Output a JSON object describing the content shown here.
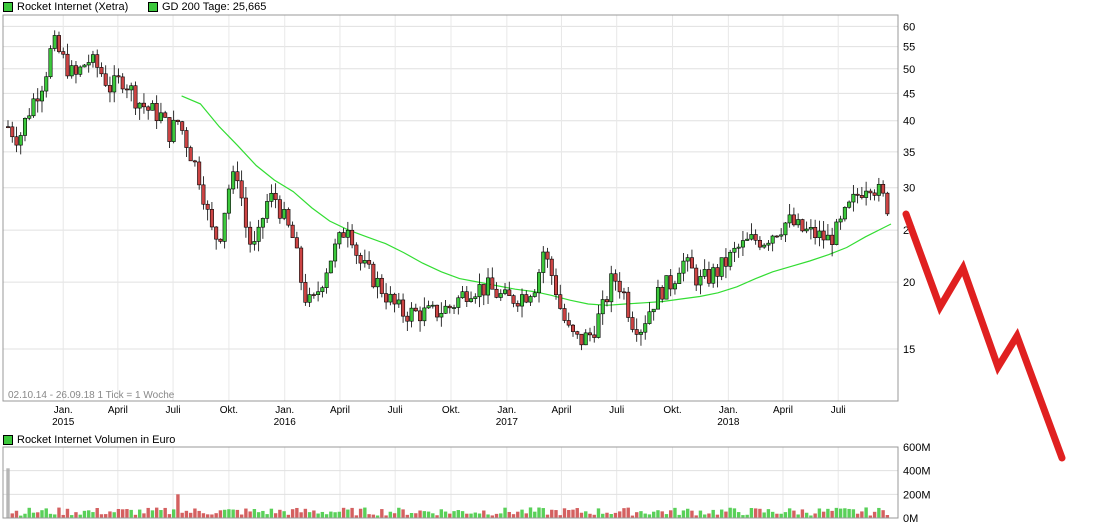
{
  "legend": {
    "price_label": "Rocket Internet (Xetra)",
    "sma_label": "GD 200 Tage: 25,665",
    "volume_label": "Rocket Internet Volumen in Euro",
    "price_color": "#3cc83c",
    "sma_color": "#3cc83c",
    "volume_color": "#3cc83c"
  },
  "footer_note": "02.10.14 - 26.09.18   1 Tick = 1 Woche",
  "chart_data": [
    {
      "type": "candlestick",
      "title": "Rocket Internet (Xetra)",
      "y_scale": "log",
      "ylim": [
        12,
        63
      ],
      "y_ticks": [
        15,
        20,
        25,
        30,
        35,
        40,
        45,
        50,
        55,
        60
      ],
      "x_tick_labels": [
        {
          "label": "Jan.",
          "year": "2015"
        },
        {
          "label": "April",
          "year": ""
        },
        {
          "label": "Juli",
          "year": ""
        },
        {
          "label": "Okt.",
          "year": ""
        },
        {
          "label": "Jan.",
          "year": "2016"
        },
        {
          "label": "April",
          "year": ""
        },
        {
          "label": "Juli",
          "year": ""
        },
        {
          "label": "Okt.",
          "year": ""
        },
        {
          "label": "Jan.",
          "year": "2017"
        },
        {
          "label": "April",
          "year": ""
        },
        {
          "label": "Juli",
          "year": ""
        },
        {
          "label": "Okt.",
          "year": ""
        },
        {
          "label": "Jan.",
          "year": "2018"
        },
        {
          "label": "April",
          "year": ""
        },
        {
          "label": "Juli",
          "year": ""
        }
      ],
      "grid": true,
      "up_color": "#3cc83c",
      "down_color": "#cc4444",
      "close_path": [
        [
          "2014-10-02",
          39
        ],
        [
          "2014-10-20",
          37
        ],
        [
          "2014-11-10",
          43
        ],
        [
          "2014-12-01",
          48
        ],
        [
          "2014-12-15",
          56
        ],
        [
          "2015-01-05",
          51
        ],
        [
          "2015-01-20",
          48
        ],
        [
          "2015-02-10",
          52
        ],
        [
          "2015-03-01",
          50
        ],
        [
          "2015-03-20",
          46
        ],
        [
          "2015-04-10",
          48
        ],
        [
          "2015-05-01",
          44
        ],
        [
          "2015-05-20",
          42
        ],
        [
          "2015-06-10",
          41
        ],
        [
          "2015-06-25",
          38
        ],
        [
          "2015-07-10",
          40
        ],
        [
          "2015-07-25",
          36
        ],
        [
          "2015-08-15",
          31
        ],
        [
          "2015-09-01",
          25
        ],
        [
          "2015-09-15",
          24
        ],
        [
          "2015-10-01",
          30
        ],
        [
          "2015-10-15",
          32
        ],
        [
          "2015-11-01",
          24
        ],
        [
          "2015-11-15",
          23
        ],
        [
          "2015-12-01",
          28
        ],
        [
          "2015-12-15",
          29
        ],
        [
          "2016-01-01",
          26
        ],
        [
          "2016-01-15",
          24
        ],
        [
          "2016-02-01",
          19
        ],
        [
          "2016-02-15",
          18
        ],
        [
          "2016-03-01",
          20
        ],
        [
          "2016-03-15",
          22
        ],
        [
          "2016-04-01",
          24
        ],
        [
          "2016-04-15",
          26
        ],
        [
          "2016-05-01",
          22
        ],
        [
          "2016-05-15",
          21
        ],
        [
          "2016-06-01",
          20
        ],
        [
          "2016-06-15",
          19
        ],
        [
          "2016-07-01",
          18
        ],
        [
          "2016-07-15",
          17.5
        ],
        [
          "2016-08-01",
          17.5
        ],
        [
          "2016-09-01",
          17.5
        ],
        [
          "2016-10-01",
          18
        ],
        [
          "2016-11-01",
          19.5
        ],
        [
          "2016-12-01",
          19.5
        ],
        [
          "2017-01-01",
          18.5
        ],
        [
          "2017-02-01",
          19
        ],
        [
          "2017-02-20",
          20
        ],
        [
          "2017-03-01",
          23
        ],
        [
          "2017-03-20",
          20
        ],
        [
          "2017-04-01",
          17.5
        ],
        [
          "2017-04-15",
          16
        ],
        [
          "2017-05-01",
          15.5
        ],
        [
          "2017-05-20",
          16
        ],
        [
          "2017-06-10",
          18
        ],
        [
          "2017-06-25",
          20.5
        ],
        [
          "2017-07-10",
          19.5
        ],
        [
          "2017-07-25",
          17
        ],
        [
          "2017-08-10",
          16.5
        ],
        [
          "2017-09-01",
          18.5
        ],
        [
          "2017-09-15",
          19.5
        ],
        [
          "2017-10-01",
          20
        ],
        [
          "2017-10-15",
          22
        ],
        [
          "2017-11-01",
          21
        ],
        [
          "2017-11-15",
          20
        ],
        [
          "2017-12-15",
          21
        ],
        [
          "2018-01-01",
          22
        ],
        [
          "2018-01-15",
          23
        ],
        [
          "2018-02-10",
          24
        ],
        [
          "2018-03-01",
          24
        ],
        [
          "2018-03-20",
          25
        ],
        [
          "2018-04-10",
          26
        ],
        [
          "2018-05-01",
          25
        ],
        [
          "2018-05-25",
          24.5
        ],
        [
          "2018-06-15",
          24
        ],
        [
          "2018-07-01",
          25
        ],
        [
          "2018-07-15",
          27
        ],
        [
          "2018-08-01",
          29
        ],
        [
          "2018-08-20",
          31
        ],
        [
          "2018-09-10",
          29
        ],
        [
          "2018-09-26",
          27
        ]
      ],
      "sma_200": {
        "name": "GD 200 Tage",
        "last_value": 25.665,
        "points": [
          [
            "2015-07-15",
            44.5
          ],
          [
            "2015-08-15",
            43
          ],
          [
            "2015-09-15",
            39
          ],
          [
            "2015-10-15",
            36
          ],
          [
            "2015-11-15",
            33
          ],
          [
            "2015-12-15",
            31
          ],
          [
            "2016-01-15",
            29.5
          ],
          [
            "2016-02-15",
            27.5
          ],
          [
            "2016-03-15",
            26
          ],
          [
            "2016-04-15",
            25
          ],
          [
            "2016-05-15",
            24.3
          ],
          [
            "2016-06-15",
            23.6
          ],
          [
            "2016-07-15",
            22.7
          ],
          [
            "2016-08-15",
            21.7
          ],
          [
            "2016-09-15",
            20.9
          ],
          [
            "2016-10-15",
            20.3
          ],
          [
            "2016-11-15",
            20
          ],
          [
            "2016-12-15",
            19.7
          ],
          [
            "2017-01-15",
            19.4
          ],
          [
            "2017-02-15",
            19.2
          ],
          [
            "2017-03-15",
            18.9
          ],
          [
            "2017-04-15",
            18.5
          ],
          [
            "2017-05-15",
            18.2
          ],
          [
            "2017-06-15",
            18.1
          ],
          [
            "2017-07-15",
            18.2
          ],
          [
            "2017-08-15",
            18.3
          ],
          [
            "2017-09-15",
            18.4
          ],
          [
            "2017-10-15",
            18.6
          ],
          [
            "2017-11-15",
            18.8
          ],
          [
            "2017-12-15",
            19.1
          ],
          [
            "2018-01-15",
            19.6
          ],
          [
            "2018-02-15",
            20.3
          ],
          [
            "2018-03-15",
            20.9
          ],
          [
            "2018-04-15",
            21.4
          ],
          [
            "2018-05-15",
            21.9
          ],
          [
            "2018-06-15",
            22.5
          ],
          [
            "2018-07-15",
            23.2
          ],
          [
            "2018-08-15",
            24.3
          ],
          [
            "2018-09-26",
            25.665
          ]
        ]
      },
      "annotation": {
        "type": "down-arrow-zigzag",
        "color": "#e02020"
      }
    },
    {
      "type": "bar",
      "title": "Rocket Internet Volumen in Euro",
      "ylim": [
        0,
        600
      ],
      "y_ticks": [
        0,
        200,
        400,
        600
      ],
      "y_tick_labels": [
        "0M",
        "200M",
        "400M",
        "600M"
      ],
      "grid": true,
      "notable_values": [
        {
          "x": "2014-10-02",
          "value": 420,
          "color": "#aaaaaa"
        },
        {
          "x": "2015-07-10",
          "value": 200,
          "color": "#cc4444"
        }
      ],
      "typical_range": [
        20,
        90
      ]
    }
  ]
}
